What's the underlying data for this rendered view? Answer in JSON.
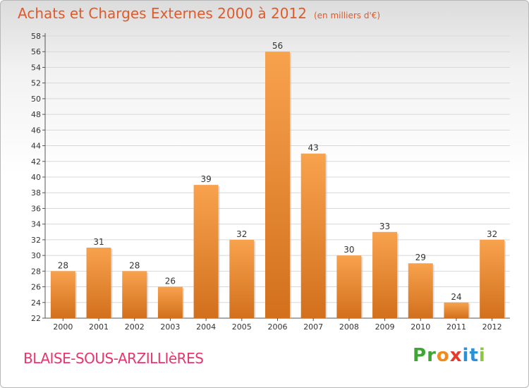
{
  "chart_data": {
    "type": "bar",
    "title": "Achats et Charges Externes 2000 à 2012",
    "subtitle": "(en milliers d'€)",
    "categories": [
      "2000",
      "2001",
      "2002",
      "2003",
      "2004",
      "2005",
      "2006",
      "2007",
      "2008",
      "2009",
      "2010",
      "2011",
      "2012"
    ],
    "values": [
      28,
      31,
      28,
      26,
      39,
      32,
      56,
      43,
      30,
      33,
      29,
      24,
      32
    ],
    "ylim": [
      22,
      58
    ],
    "ytick_step": 2,
    "grid": true,
    "bar_color_top": "#f8a24e",
    "bar_color_bottom": "#d2701c"
  },
  "commune": "BLAISE-SOUS-ARZILLIèRES",
  "logo": {
    "letters": [
      "P",
      "r",
      "o",
      "x",
      "i",
      "t",
      "i"
    ],
    "colors": [
      "#3fa535",
      "#3fa535",
      "#f08c1e",
      "#e83a2c",
      "#2d8fd5",
      "#2d8fd5",
      "#8dc63f"
    ]
  }
}
